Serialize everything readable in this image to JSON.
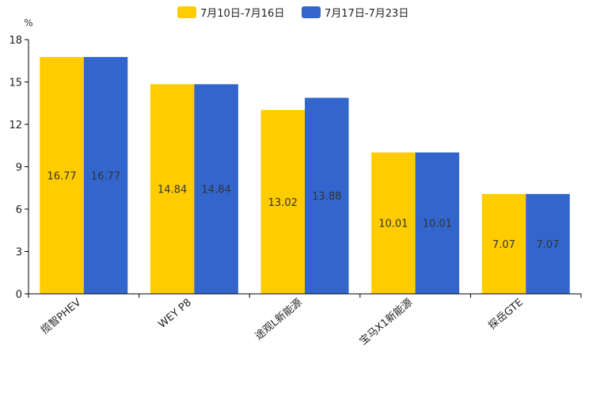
{
  "chart_data": {
    "type": "bar",
    "title": "",
    "xlabel": "",
    "ylabel": "%",
    "ylim": [
      0,
      18
    ],
    "yticks": [
      0,
      3,
      6,
      9,
      12,
      15,
      18
    ],
    "grid": false,
    "legend_position": "top-center",
    "categories": [
      "揽智PHEV",
      "WEY P8",
      "途观L新能源",
      "宝马X1新能源",
      "探岳GTE"
    ],
    "series": [
      {
        "name": "7月10日-7月16日",
        "color": "#FFCC00",
        "values": [
          16.77,
          14.84,
          13.02,
          10.01,
          7.07
        ]
      },
      {
        "name": "7月17日-7月23日",
        "color": "#3366CC",
        "values": [
          16.77,
          14.84,
          13.88,
          10.01,
          7.07
        ]
      }
    ]
  }
}
